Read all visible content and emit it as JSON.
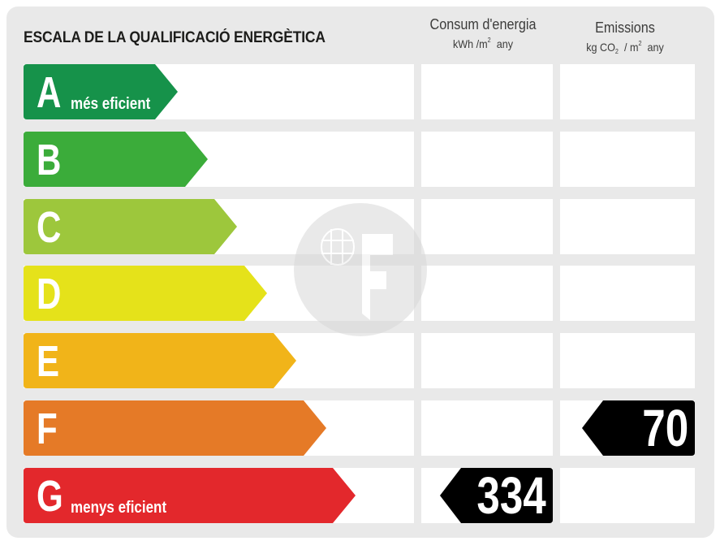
{
  "scale": {
    "title": "ESCALA DE LA QUALIFICACIÓ ENERGÈTICA",
    "consum_header": "Consum d'energia",
    "consum_unit_pre": "kWh /m",
    "consum_unit_sup": "2",
    "consum_unit_post": "any",
    "emis_header": "Emissions",
    "emis_unit_pre": "kg CO",
    "emis_unit_sub": "2",
    "emis_unit_mid": "/ m",
    "emis_unit_sup": "2",
    "emis_unit_post": "any",
    "ratings": [
      {
        "letter": "A",
        "caption": "més eficient",
        "color": "#16924a"
      },
      {
        "letter": "B",
        "caption": "",
        "color": "#3bac3a"
      },
      {
        "letter": "C",
        "caption": "",
        "color": "#9dc73c"
      },
      {
        "letter": "D",
        "caption": "",
        "color": "#e5e21a"
      },
      {
        "letter": "E",
        "caption": "",
        "color": "#f1b419"
      },
      {
        "letter": "F",
        "caption": "",
        "color": "#e57a27"
      },
      {
        "letter": "G",
        "caption": "menys eficient",
        "color": "#e3282c"
      }
    ],
    "consum_value": "334",
    "consum_rating": "G",
    "emis_value": "70",
    "emis_rating": "F",
    "marker_color": "#000000"
  },
  "watermark": {
    "icon": "globe-f-logo-icon"
  }
}
